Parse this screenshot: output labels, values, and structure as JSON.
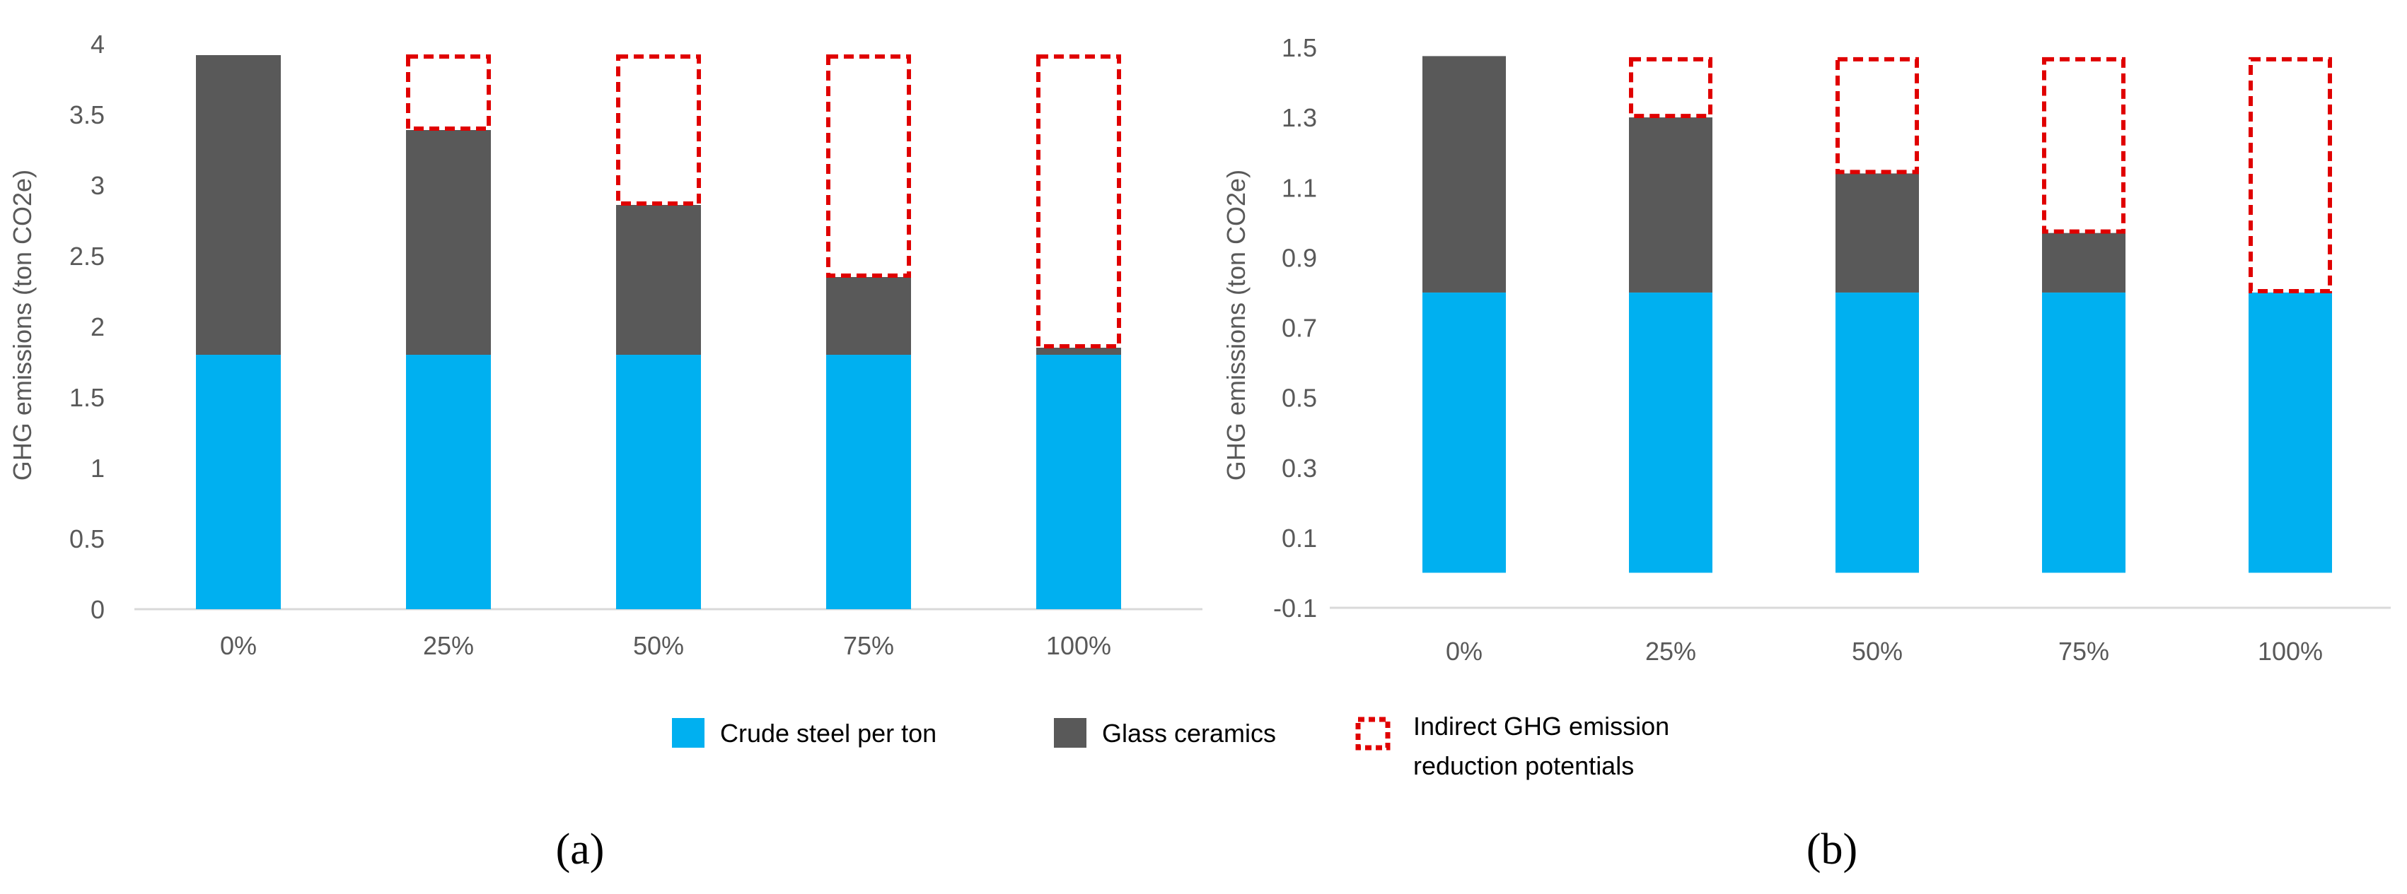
{
  "colors": {
    "steel": "#00B0F0",
    "glass": "#595959",
    "indirect": "#E00000",
    "axis_text": "#595959",
    "axis_line": "#D9D9D9"
  },
  "legend": {
    "steel": "Crude steel per ton",
    "glass": "Glass ceramics",
    "indirect_line1": "Indirect GHG emission",
    "indirect_line2": "reduction potentials"
  },
  "chart_data": [
    {
      "type": "bar",
      "stacked": true,
      "panel_label": "(a)",
      "ylabel": "GHG emissions (ton CO2e)",
      "xlabel": "",
      "ylim": [
        0,
        4
      ],
      "yticks": [
        0,
        0.5,
        1,
        1.5,
        2,
        2.5,
        3,
        3.5,
        4
      ],
      "ytick_labels": [
        "0",
        "0.5",
        "1",
        "1.5",
        "2",
        "2.5",
        "3",
        "3.5",
        "4"
      ],
      "categories": [
        "0%",
        "25%",
        "50%",
        "75%",
        "100%"
      ],
      "series": [
        {
          "name": "Crude steel per ton",
          "values": [
            1.8,
            1.8,
            1.8,
            1.8,
            1.8
          ]
        },
        {
          "name": "Glass ceramics",
          "values": [
            2.12,
            1.59,
            1.06,
            0.55,
            0.05
          ]
        },
        {
          "name": "Indirect GHG emission reduction potentials",
          "values": [
            0,
            0.53,
            1.06,
            1.57,
            2.07
          ]
        }
      ]
    },
    {
      "type": "bar",
      "stacked": true,
      "panel_label": "(b)",
      "ylabel": "GHG emissions (ton CO2e)",
      "xlabel": "",
      "ylim": [
        -0.1,
        1.5
      ],
      "yticks": [
        -0.1,
        0.1,
        0.3,
        0.5,
        0.7,
        0.9,
        1.1,
        1.3,
        1.5
      ],
      "ytick_labels": [
        "-0.1",
        "0.1",
        "0.3",
        "0.5",
        "0.7",
        "0.9",
        "1.1",
        "1.3",
        "1.5"
      ],
      "categories": [
        "0%",
        "25%",
        "50%",
        "75%",
        "100%"
      ],
      "series": [
        {
          "name": "Crude steel per ton",
          "values": [
            0.8,
            0.8,
            0.8,
            0.8,
            0.8
          ]
        },
        {
          "name": "Glass ceramics",
          "values": [
            0.675,
            0.5,
            0.34,
            0.17,
            0
          ]
        },
        {
          "name": "Indirect GHG emission reduction potentials",
          "values": [
            0,
            0.17,
            0.33,
            0.5,
            0.67
          ]
        }
      ]
    }
  ]
}
